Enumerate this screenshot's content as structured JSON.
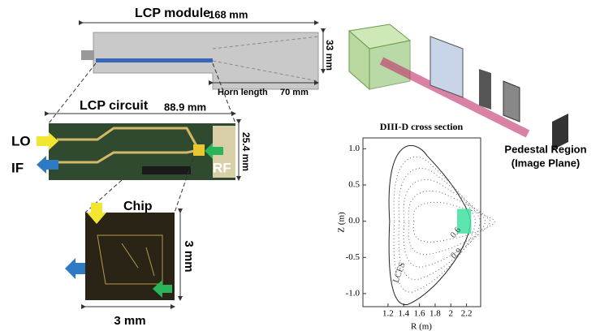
{
  "module": {
    "title": "LCP module",
    "length": "168 mm",
    "height": "33 mm",
    "horn_label": "Horn length",
    "horn_length": "70 mm"
  },
  "circuit": {
    "title": "LCP circuit",
    "length": "88.9 mm",
    "height": "25.4 mm",
    "lo": "LO",
    "if": "IF",
    "rf": "RF"
  },
  "chip": {
    "title": "Chip",
    "height": "3 mm",
    "width": "3 mm"
  },
  "cross_section": {
    "title": "DIII-D cross section",
    "xlabel": "R (m)",
    "ylabel": "Z (m)",
    "xlim": [
      0.88,
      2.38
    ],
    "ylim": [
      -1.18,
      1.15
    ],
    "xticks": [
      1.2,
      1.4,
      1.6,
      1.8,
      2.0,
      2.2
    ],
    "yticks": [
      {
        "value": 1,
        "label": "1.0"
      },
      0.5,
      {
        "value": 0,
        "label": "0.0"
      },
      -0.5,
      {
        "value": -1,
        "label": "-1.0"
      }
    ],
    "contour_labels": [
      "LCFS",
      "0.9",
      "0.6"
    ]
  },
  "render": {
    "label_line1": "Pedestal Region",
    "label_line2": "(Image Plane)"
  }
}
